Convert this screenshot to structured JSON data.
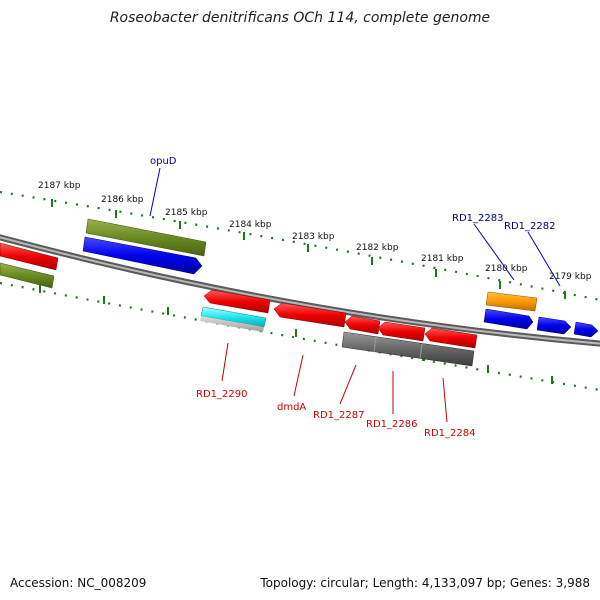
{
  "title": "Roseobacter denitrificans OCh 114, complete genome",
  "footer": {
    "accession": "Accession: NC_008209",
    "topology": "Topology: circular; Length: 4,133,097 bp; Genes: 3,988"
  },
  "scale_labels": [
    "2187 kbp",
    "2186 kbp",
    "2185 kbp",
    "2184 kbp",
    "2183 kbp",
    "2182 kbp",
    "2181 kbp",
    "2180 kbp",
    "2179 kbp"
  ],
  "gene_labels": {
    "top": [
      "opuD",
      "RD1_2283",
      "RD1_2282"
    ],
    "bottom": [
      "RD1_2290",
      "dmdA",
      "RD1_2287",
      "RD1_2286",
      "RD1_2284"
    ]
  },
  "colors": {
    "forward_label": "#00008b",
    "reverse_label": "#cc0000",
    "ruler": "#1a7a1a",
    "backbone": "#808080"
  }
}
